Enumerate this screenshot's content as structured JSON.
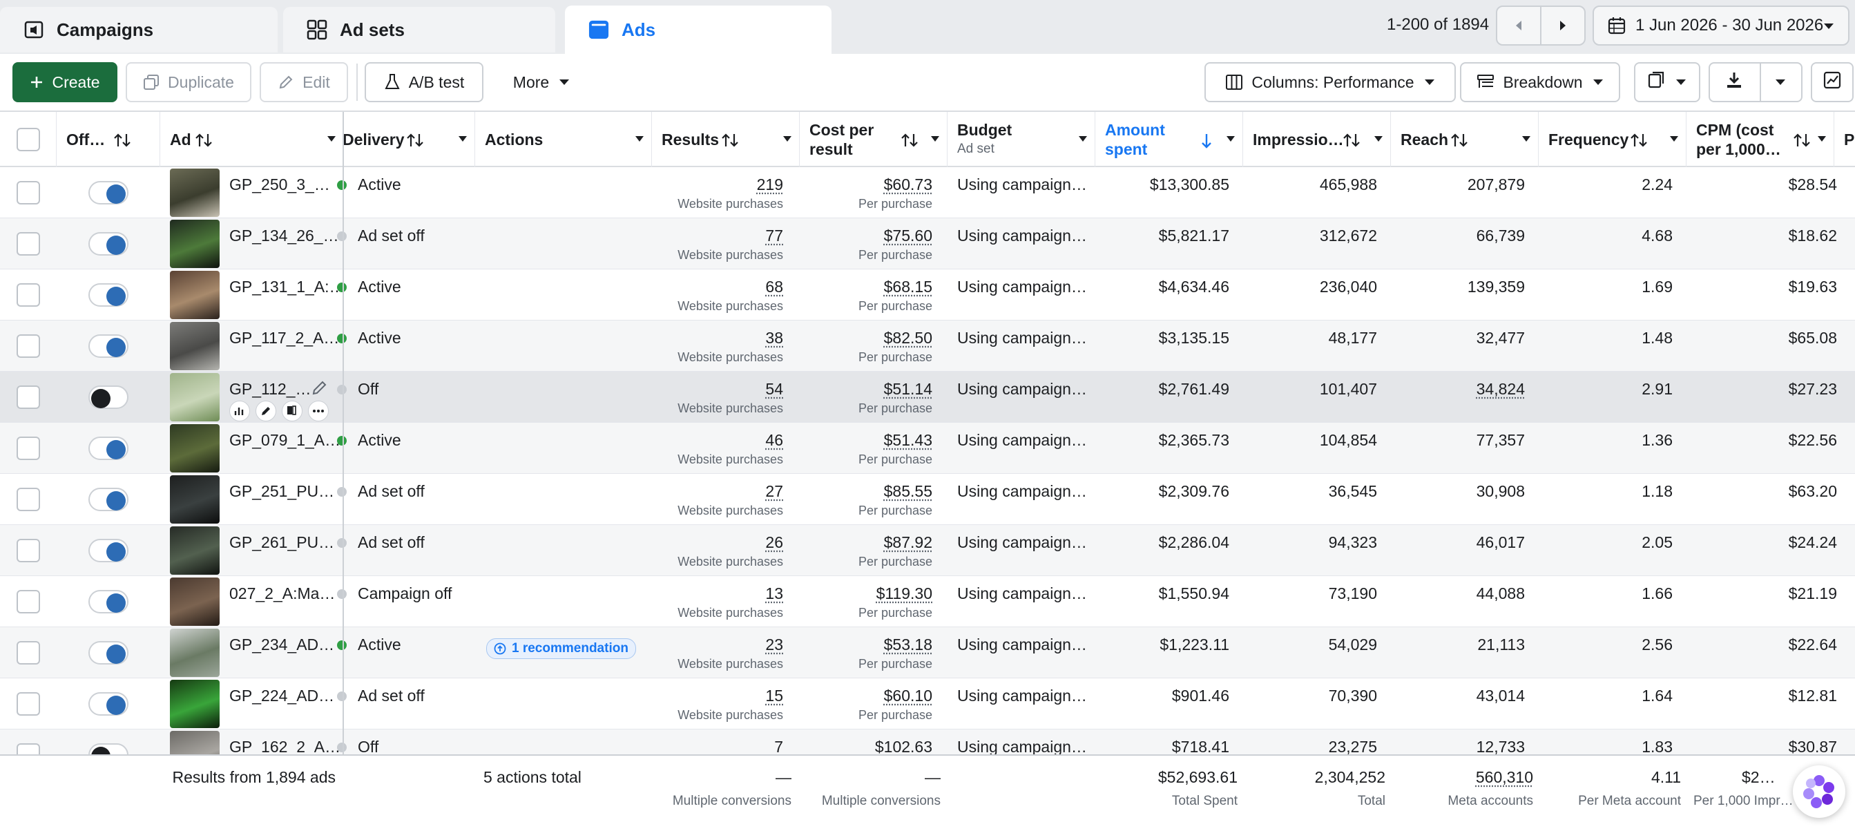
{
  "tabs": [
    {
      "label": "Campaigns",
      "icon": "campaign-icon"
    },
    {
      "label": "Ad sets",
      "icon": "grid-icon"
    },
    {
      "label": "Ads",
      "icon": "ad-icon",
      "active": true
    }
  ],
  "pagination": {
    "range": "1-200 of 1894"
  },
  "date_range": "1 Jun 2026 - 30 Jun 2026",
  "toolbar": {
    "create": "Create",
    "duplicate": "Duplicate",
    "edit": "Edit",
    "ab_test": "A/B test",
    "more": "More",
    "columns": "Columns: Performance",
    "breakdown": "Breakdown"
  },
  "headers": {
    "off_on": "Off…",
    "ad": "Ad",
    "delivery": "Delivery",
    "actions": "Actions",
    "results": "Results",
    "cpr_1": "Cost per",
    "cpr_2": "result",
    "budget": "Budget",
    "budget_sub": "Ad set",
    "amount_1": "Amount",
    "amount_2": "spent",
    "impressions": "Impressio…",
    "reach": "Reach",
    "frequency": "Frequency",
    "cpm_1": "CPM (cost",
    "cpm_2": "per 1,000…",
    "next": "P"
  },
  "rows": [
    {
      "name": "GP_250_3_…",
      "on": true,
      "delivery": "Active",
      "dstatus": "green",
      "results": "219",
      "results_sub": "Website purchases",
      "cpr": "$60.73",
      "cpr_sub": "Per purchase",
      "budget": "Using campaign…",
      "spent": "$13,300.85",
      "impressions": "465,988",
      "reach": "207,879",
      "frequency": "2.24",
      "cpm": "$28.54"
    },
    {
      "name": "GP_134_26_…",
      "on": true,
      "delivery": "Ad set off",
      "dstatus": "gray",
      "results": "77",
      "results_sub": "Website purchases",
      "cpr": "$75.60",
      "cpr_sub": "Per purchase",
      "budget": "Using campaign…",
      "spent": "$5,821.17",
      "impressions": "312,672",
      "reach": "66,739",
      "frequency": "4.68",
      "cpm": "$18.62"
    },
    {
      "name": "GP_131_1_A:…",
      "on": true,
      "delivery": "Active",
      "dstatus": "green",
      "results": "68",
      "results_sub": "Website purchases",
      "cpr": "$68.15",
      "cpr_sub": "Per purchase",
      "budget": "Using campaign…",
      "spent": "$4,634.46",
      "impressions": "236,040",
      "reach": "139,359",
      "frequency": "1.69",
      "cpm": "$19.63"
    },
    {
      "name": "GP_117_2_A…",
      "on": true,
      "delivery": "Active",
      "dstatus": "green",
      "results": "38",
      "results_sub": "Website purchases",
      "cpr": "$82.50",
      "cpr_sub": "Per purchase",
      "budget": "Using campaign…",
      "spent": "$3,135.15",
      "impressions": "48,177",
      "reach": "32,477",
      "frequency": "1.48",
      "cpm": "$65.08"
    },
    {
      "name": "GP_112_…",
      "on": false,
      "delivery": "Off",
      "dstatus": "gray",
      "results": "54",
      "results_sub": "Website purchases",
      "cpr": "$51.14",
      "cpr_sub": "Per purchase",
      "budget": "Using campaign…",
      "spent": "$2,761.49",
      "impressions": "101,407",
      "reach": "34,824",
      "frequency": "2.91",
      "cpm": "$27.23",
      "hover": true
    },
    {
      "name": "GP_079_1_A…",
      "on": true,
      "delivery": "Active",
      "dstatus": "green",
      "results": "46",
      "results_sub": "Website purchases",
      "cpr": "$51.43",
      "cpr_sub": "Per purchase",
      "budget": "Using campaign…",
      "spent": "$2,365.73",
      "impressions": "104,854",
      "reach": "77,357",
      "frequency": "1.36",
      "cpm": "$22.56"
    },
    {
      "name": "GP_251_PU…",
      "on": true,
      "delivery": "Ad set off",
      "dstatus": "gray",
      "results": "27",
      "results_sub": "Website purchases",
      "cpr": "$85.55",
      "cpr_sub": "Per purchase",
      "budget": "Using campaign…",
      "spent": "$2,309.76",
      "impressions": "36,545",
      "reach": "30,908",
      "frequency": "1.18",
      "cpm": "$63.20"
    },
    {
      "name": "GP_261_PU…",
      "on": true,
      "delivery": "Ad set off",
      "dstatus": "gray",
      "results": "26",
      "results_sub": "Website purchases",
      "cpr": "$87.92",
      "cpr_sub": "Per purchase",
      "budget": "Using campaign…",
      "spent": "$2,286.04",
      "impressions": "94,323",
      "reach": "46,017",
      "frequency": "2.05",
      "cpm": "$24.24"
    },
    {
      "name": "027_2_A:Ma…",
      "on": true,
      "delivery": "Campaign off",
      "dstatus": "gray",
      "results": "13",
      "results_sub": "Website purchases",
      "cpr": "$119.30",
      "cpr_sub": "Per purchase",
      "budget": "Using campaign…",
      "spent": "$1,550.94",
      "impressions": "73,190",
      "reach": "44,088",
      "frequency": "1.66",
      "cpm": "$21.19"
    },
    {
      "name": "GP_234_AD…",
      "on": true,
      "delivery": "Active",
      "dstatus": "green",
      "recommendation": "1 recommendation",
      "results": "23",
      "results_sub": "Website purchases",
      "cpr": "$53.18",
      "cpr_sub": "Per purchase",
      "budget": "Using campaign…",
      "spent": "$1,223.11",
      "impressions": "54,029",
      "reach": "21,113",
      "frequency": "2.56",
      "cpm": "$22.64"
    },
    {
      "name": "GP_224_AD…",
      "on": true,
      "delivery": "Ad set off",
      "dstatus": "gray",
      "results": "15",
      "results_sub": "Website purchases",
      "cpr": "$60.10",
      "cpr_sub": "Per purchase",
      "budget": "Using campaign…",
      "spent": "$901.46",
      "impressions": "70,390",
      "reach": "43,014",
      "frequency": "1.64",
      "cpm": "$12.81"
    },
    {
      "name": "GP_162_2_A…",
      "on": false,
      "delivery": "Off",
      "dstatus": "gray",
      "results": "7",
      "results_sub": "",
      "cpr": "$102.63",
      "cpr_sub": "",
      "budget": "Using campaign…",
      "spent": "$718.41",
      "impressions": "23,275",
      "reach": "12,733",
      "frequency": "1.83",
      "cpm": "$30.87"
    }
  ],
  "footer": {
    "results_from": "Results from 1,894 ads",
    "actions_total": "5 actions total",
    "results": "—",
    "results_sub": "Multiple conversions",
    "cpr": "—",
    "cpr_sub": "Multiple conversions",
    "spent": "$52,693.61",
    "spent_sub": "Total Spent",
    "impressions": "2,304,252",
    "impressions_sub": "Total",
    "reach": "560,310",
    "reach_sub": "Meta accounts",
    "frequency": "4.11",
    "frequency_sub": "Per Meta account",
    "cpm": "$2…",
    "cpm_sub": "Per 1,000 Impr…"
  },
  "colors": {
    "accent": "#1877f2",
    "create_button": "#1b6d3d",
    "active_dot": "#2f9e44",
    "toggle_on": "#2d6cb5"
  }
}
